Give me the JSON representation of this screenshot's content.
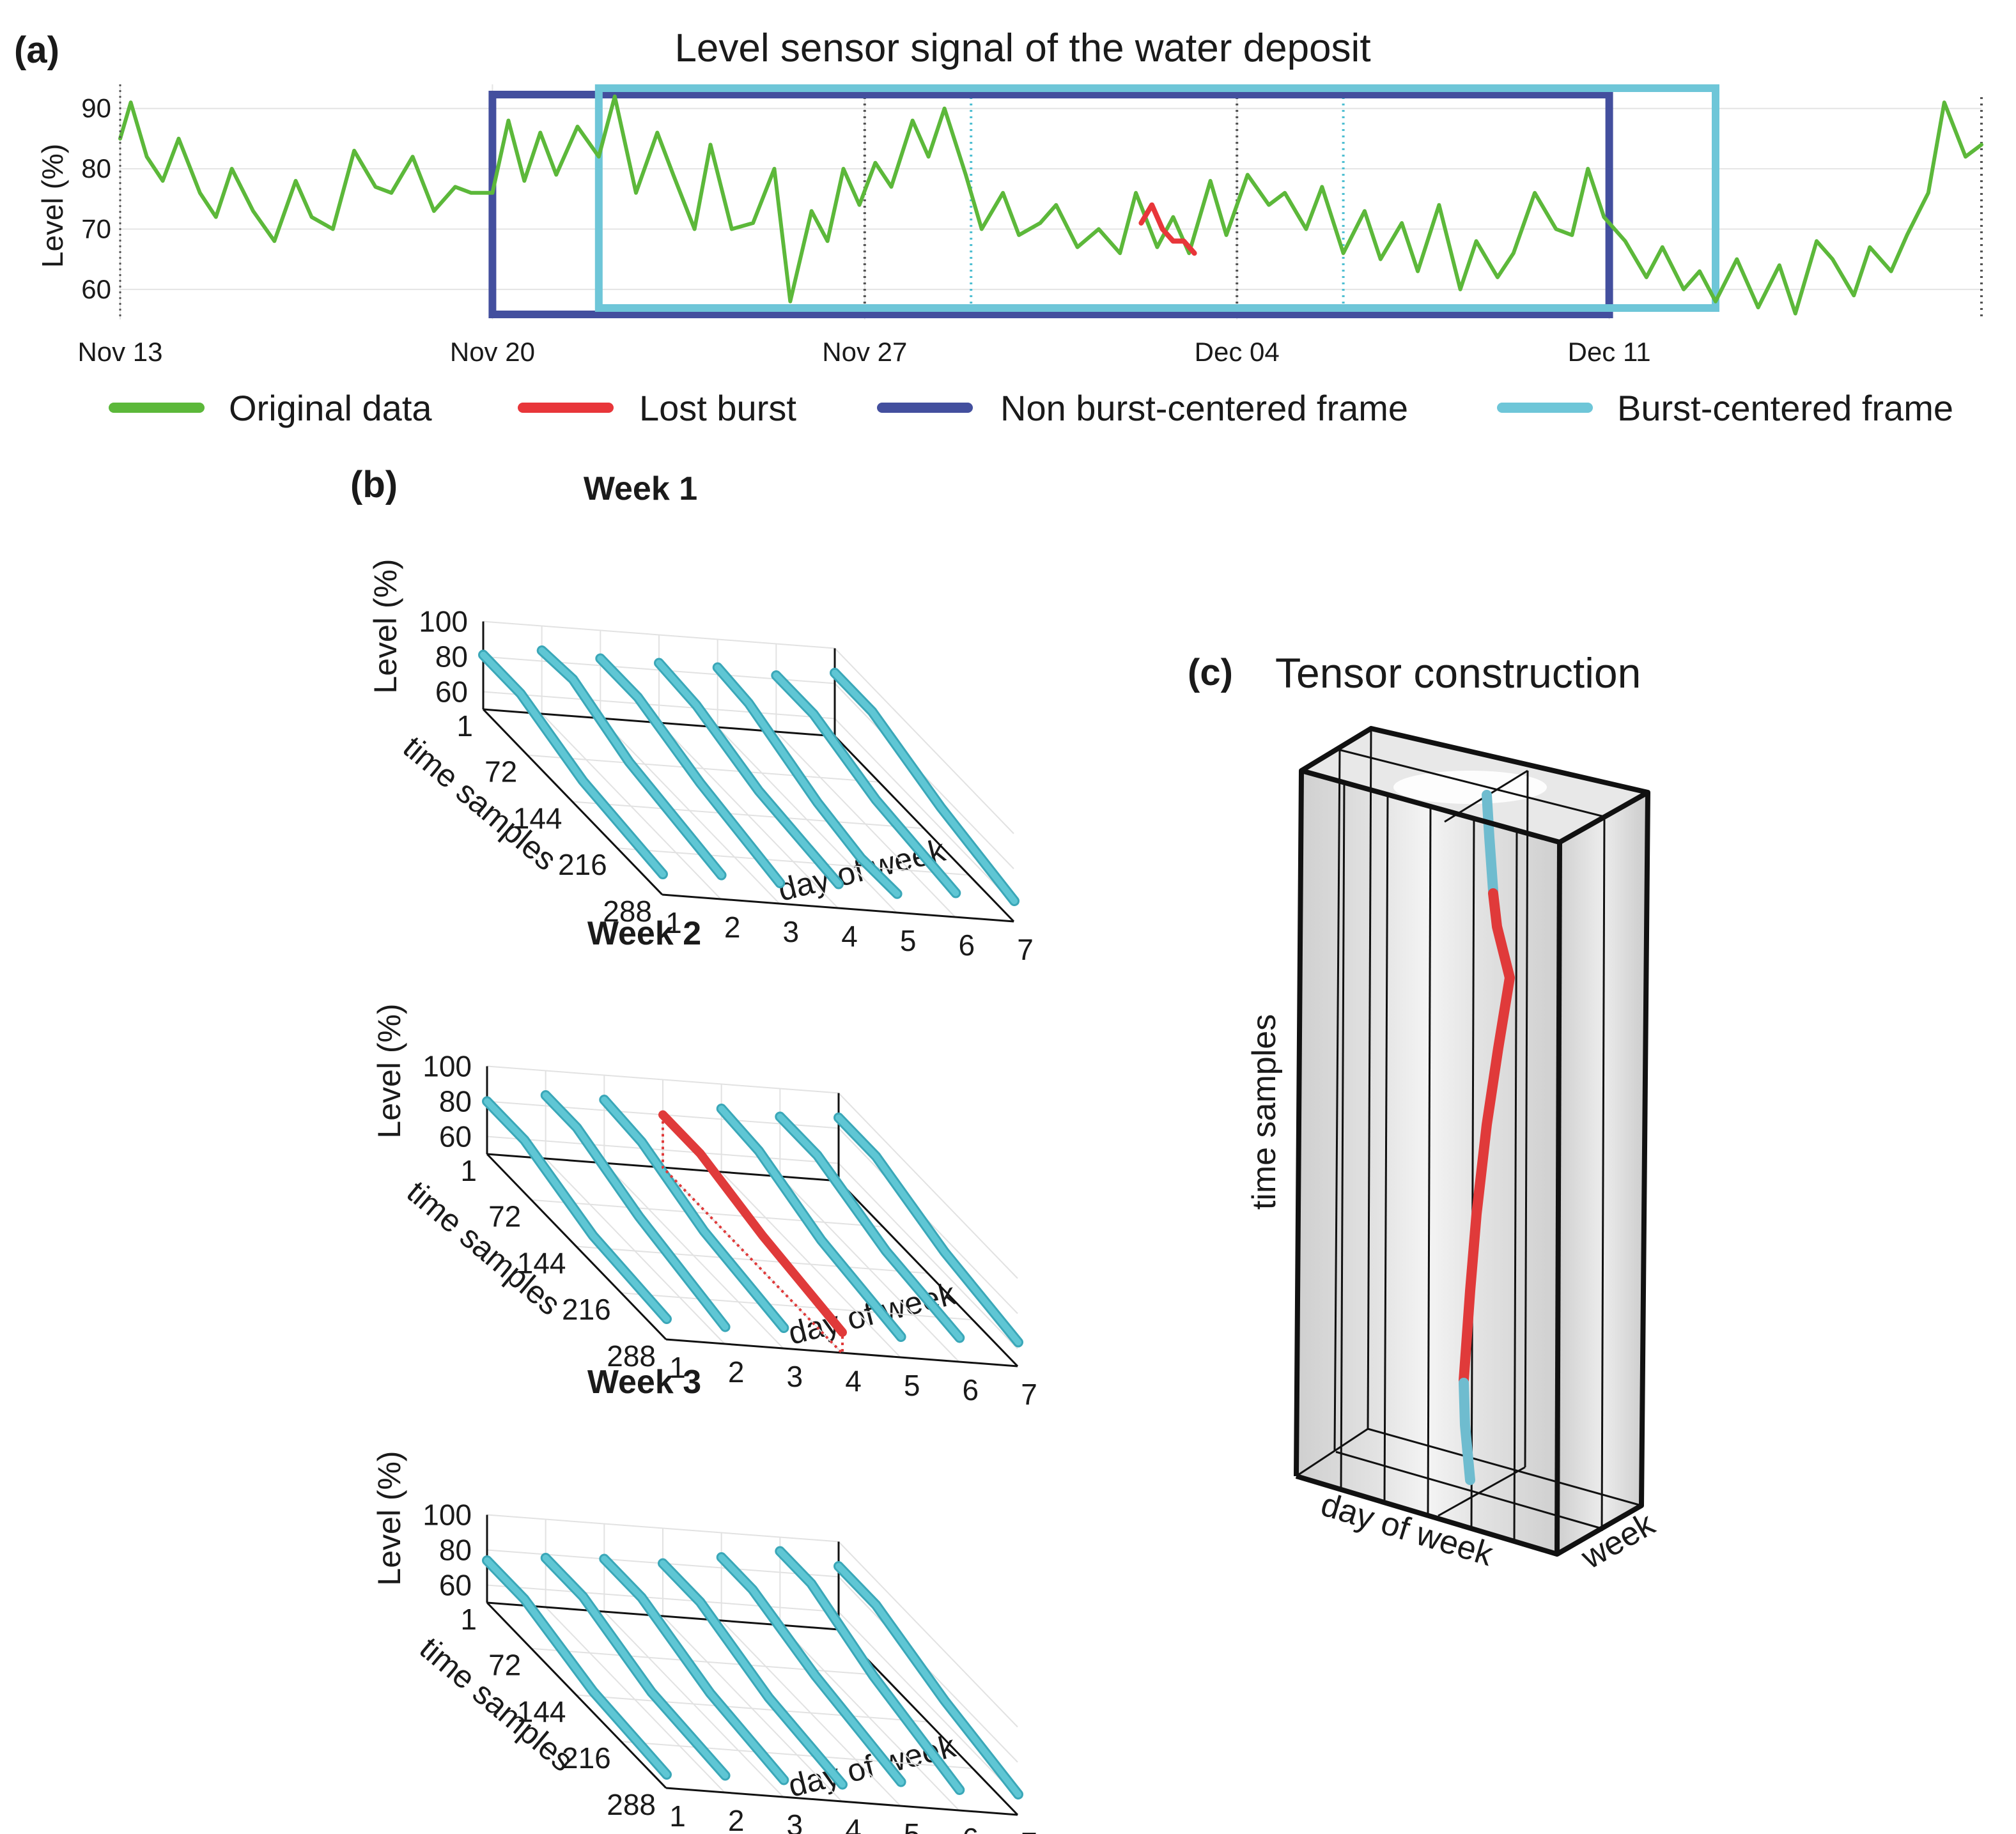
{
  "chart_data": [
    {
      "panel": "(a)",
      "type": "line",
      "title": "Level sensor signal of the water deposit",
      "ylabel": "Level (%)",
      "xlabel": "",
      "ylim": [
        55,
        94
      ],
      "yticks": [
        60,
        70,
        80,
        90
      ],
      "xlim": [
        0,
        35
      ],
      "x_ticks": [
        {
          "x": 0,
          "label": "Nov 13"
        },
        {
          "x": 7,
          "label": "Nov 20"
        },
        {
          "x": 14,
          "label": "Nov 27"
        },
        {
          "x": 21,
          "label": "Dec 04"
        },
        {
          "x": 28,
          "label": "Dec 11"
        }
      ],
      "grid": true,
      "series": [
        {
          "name": "Original data",
          "color": "#5cb83a",
          "x": [
            0,
            0.2,
            0.5,
            0.8,
            1.1,
            1.5,
            1.8,
            2.1,
            2.5,
            2.9,
            3.3,
            3.6,
            4.0,
            4.4,
            4.8,
            5.1,
            5.5,
            5.9,
            6.3,
            6.6,
            7.0,
            7.3,
            7.6,
            7.9,
            8.2,
            8.6,
            9.0,
            9.3,
            9.7,
            10.1,
            10.4,
            10.8,
            11.1,
            11.5,
            11.9,
            12.3,
            12.6,
            13.0,
            13.3,
            13.6,
            13.9,
            14.2,
            14.5,
            14.9,
            15.2,
            15.5,
            15.9,
            16.2,
            16.6,
            16.9,
            17.3,
            17.6,
            18.0,
            18.4,
            18.8,
            19.1,
            19.5,
            19.8,
            20.1,
            20.5,
            20.8,
            21.2,
            21.6,
            21.9,
            22.3,
            22.6,
            23.0,
            23.4,
            23.7,
            24.1,
            24.4,
            24.8,
            25.2,
            25.5,
            25.9,
            26.2,
            26.6,
            27.0,
            27.3,
            27.6,
            27.9,
            28.3,
            28.7,
            29.0,
            29.4,
            29.7,
            30.0,
            30.4,
            30.8,
            31.2,
            31.5,
            31.9,
            32.2,
            32.6,
            32.9,
            33.3,
            33.6,
            34.0,
            34.3,
            34.7,
            35.0
          ],
          "y": [
            85,
            91,
            82,
            78,
            85,
            76,
            72,
            80,
            73,
            68,
            78,
            72,
            70,
            83,
            77,
            76,
            82,
            73,
            77,
            76,
            76,
            88,
            78,
            86,
            79,
            87,
            82,
            92,
            76,
            86,
            79,
            70,
            84,
            70,
            71,
            80,
            58,
            73,
            68,
            80,
            74,
            81,
            77,
            88,
            82,
            90,
            79,
            70,
            76,
            69,
            71,
            74,
            67,
            70,
            66,
            76,
            67,
            72,
            66,
            78,
            69,
            79,
            74,
            76,
            70,
            77,
            66,
            73,
            65,
            71,
            63,
            74,
            60,
            68,
            62,
            66,
            76,
            70,
            69,
            80,
            72,
            68,
            62,
            67,
            60,
            63,
            58,
            65,
            57,
            64,
            56,
            68,
            65,
            59,
            67,
            63,
            69,
            76,
            91,
            82,
            84
          ]
        },
        {
          "name": "Lost burst",
          "color": "#e8363a",
          "x": [
            19.2,
            19.4,
            19.6,
            19.8,
            20.0,
            20.2
          ],
          "y": [
            71,
            74,
            70,
            68,
            68,
            66
          ]
        }
      ],
      "frames": [
        {
          "name": "Non burst-centered frame",
          "color": "#434f9e",
          "x_start": 7,
          "x_end": 28
        },
        {
          "name": "Burst-centered frame",
          "color": "#6ec6d8",
          "x_start": 9,
          "x_end": 30
        }
      ],
      "dotted_markers": [
        {
          "x": 14,
          "color": "#555555"
        },
        {
          "x": 21,
          "color": "#555555"
        },
        {
          "x": 16,
          "color": "#4fbfd2"
        },
        {
          "x": 23,
          "color": "#4fbfd2"
        },
        {
          "x": 35,
          "color": "#555555"
        }
      ],
      "legend": [
        {
          "label": "Original data",
          "color": "#5cb83a"
        },
        {
          "label": "Lost burst",
          "color": "#e8363a"
        },
        {
          "label": "Non burst-centered frame",
          "color": "#434f9e"
        },
        {
          "label": "Burst-centered frame",
          "color": "#6ec6d8"
        }
      ],
      "legend_position": "bottom"
    },
    {
      "panel": "(b)",
      "type": "line3d",
      "zlabel": "Level (%)",
      "ylabel": "time samples",
      "xlabel": "day of week",
      "zticks": [
        60,
        80,
        100
      ],
      "yticks": [
        1,
        72,
        144,
        216,
        288
      ],
      "xticks": [
        1,
        2,
        3,
        4,
        5,
        6,
        7
      ],
      "line_color": "#5fc6d4",
      "missing_color": "#e03a3a",
      "weeks": [
        {
          "title": "Week 1",
          "days": [
            {
              "day": 1,
              "profile": [
                [
                  0,
                  81
                ],
                [
                  60,
                  81
                ],
                [
                  160,
                  68
                ],
                [
                  288,
                  62
                ]
              ]
            },
            {
              "day": 2,
              "profile": [
                [
                  0,
                  86
                ],
                [
                  50,
                  88
                ],
                [
                  140,
                  74
                ],
                [
                  288,
                  64
                ]
              ]
            },
            {
              "day": 3,
              "profile": [
                [
                  0,
                  84
                ],
                [
                  60,
                  84
                ],
                [
                  160,
                  72
                ],
                [
                  288,
                  62
                ]
              ]
            },
            {
              "day": 4,
              "profile": [
                [
                  0,
                  84
                ],
                [
                  60,
                  82
                ],
                [
                  160,
                  70
                ],
                [
                  288,
                  64
                ]
              ]
            },
            {
              "day": 5,
              "profile": [
                [
                  0,
                  84
                ],
                [
                  50,
                  82
                ],
                [
                  160,
                  66
                ],
                [
                  230,
                  60
                ],
                [
                  288,
                  61
                ]
              ]
            },
            {
              "day": 6,
              "profile": [
                [
                  0,
                  82
                ],
                [
                  60,
                  82
                ],
                [
                  160,
                  70
                ],
                [
                  288,
                  64
                ]
              ]
            },
            {
              "day": 7,
              "profile": [
                [
                  0,
                  86
                ],
                [
                  60,
                  86
                ],
                [
                  170,
                  72
                ],
                [
                  288,
                  62
                ]
              ]
            }
          ]
        },
        {
          "title": "Week 2",
          "days": [
            {
              "day": 1,
              "profile": [
                [
                  0,
                  80
                ],
                [
                  60,
                  80
                ],
                [
                  170,
                  66
                ],
                [
                  288,
                  62
                ]
              ]
            },
            {
              "day": 2,
              "profile": [
                [
                  0,
                  86
                ],
                [
                  50,
                  86
                ],
                [
                  150,
                  72
                ],
                [
                  288,
                  60
                ]
              ]
            },
            {
              "day": 3,
              "profile": [
                [
                  0,
                  86
                ],
                [
                  60,
                  84
                ],
                [
                  160,
                  70
                ],
                [
                  288,
                  62
                ]
              ]
            },
            {
              "day": 4,
              "missing": true,
              "profile": [
                [
                  0,
                  80
                ],
                [
                  60,
                  80
                ],
                [
                  160,
                  70
                ],
                [
                  288,
                  62
                ]
              ]
            },
            {
              "day": 5,
              "profile": [
                [
                  0,
                  86
                ],
                [
                  60,
                  84
                ],
                [
                  160,
                  70
                ],
                [
                  288,
                  62
                ]
              ]
            },
            {
              "day": 6,
              "profile": [
                [
                  0,
                  84
                ],
                [
                  60,
                  84
                ],
                [
                  170,
                  70
                ],
                [
                  288,
                  64
                ]
              ]
            },
            {
              "day": 7,
              "profile": [
                [
                  0,
                  86
                ],
                [
                  60,
                  86
                ],
                [
                  170,
                  72
                ],
                [
                  288,
                  64
                ]
              ]
            }
          ]
        },
        {
          "title": "Week 3",
          "days": [
            {
              "day": 1,
              "profile": [
                [
                  0,
                  74
                ],
                [
                  60,
                  74
                ],
                [
                  170,
                  62
                ],
                [
                  288,
                  58
                ]
              ]
            },
            {
              "day": 2,
              "profile": [
                [
                  0,
                  78
                ],
                [
                  60,
                  78
                ],
                [
                  170,
                  64
                ],
                [
                  288,
                  60
                ]
              ]
            },
            {
              "day": 3,
              "profile": [
                [
                  0,
                  80
                ],
                [
                  60,
                  80
                ],
                [
                  170,
                  66
                ],
                [
                  288,
                  60
                ]
              ]
            },
            {
              "day": 4,
              "profile": [
                [
                  0,
                  80
                ],
                [
                  60,
                  80
                ],
                [
                  170,
                  66
                ],
                [
                  288,
                  60
                ]
              ]
            },
            {
              "day": 5,
              "profile": [
                [
                  0,
                  86
                ],
                [
                  50,
                  86
                ],
                [
                  150,
                  74
                ],
                [
                  288,
                  64
                ]
              ]
            },
            {
              "day": 6,
              "profile": [
                [
                  0,
                  92
                ],
                [
                  50,
                  92
                ],
                [
                  150,
                  76
                ],
                [
                  288,
                  62
                ]
              ]
            },
            {
              "day": 7,
              "profile": [
                [
                  0,
                  86
                ],
                [
                  60,
                  86
                ],
                [
                  170,
                  72
                ],
                [
                  288,
                  62
                ]
              ]
            }
          ]
        }
      ]
    }
  ],
  "panel_c": {
    "label": "(c)",
    "title": "Tensor construction",
    "axis_time": "time samples",
    "axis_day": "day of week",
    "axis_week": "week",
    "segment_observed_color": "#6fbccf",
    "segment_missing_color": "#e03a3a"
  }
}
